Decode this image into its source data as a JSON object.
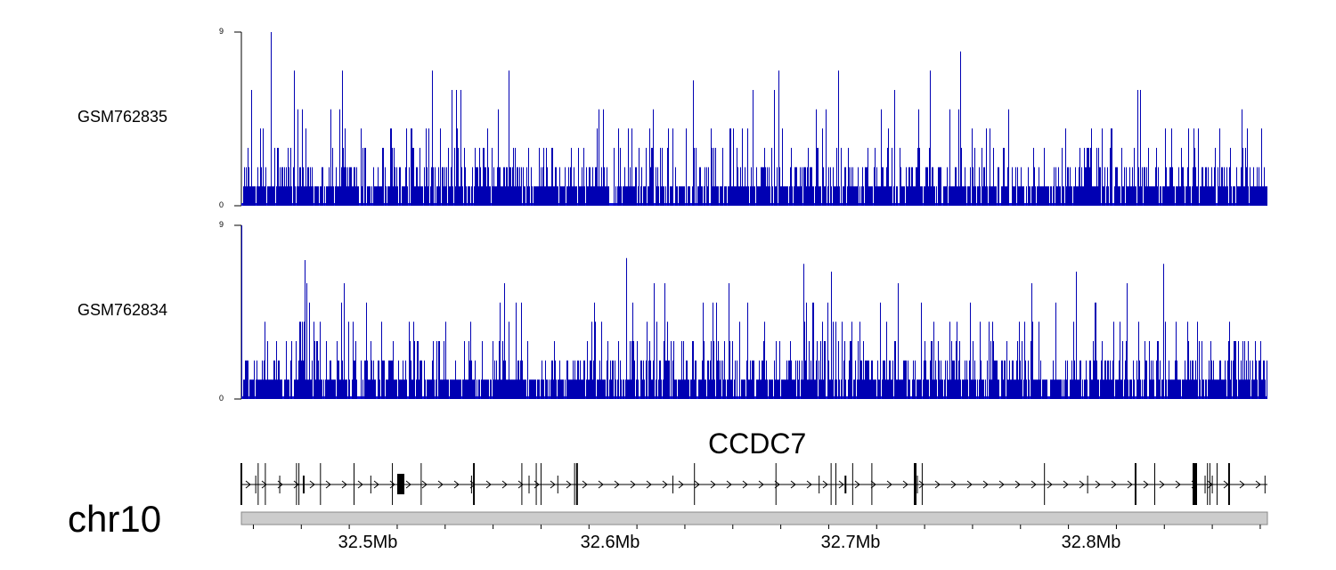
{
  "tracks": [
    {
      "name": "GSM762835",
      "ymin_label": "0",
      "ymax_label": "9",
      "ymax": 9,
      "color": "#0000b3"
    },
    {
      "name": "GSM762834",
      "ymin_label": "0",
      "ymax_label": "9",
      "ymax": 9,
      "color": "#0000b3"
    }
  ],
  "gene": {
    "name": "CCDC7"
  },
  "chromosome": "chr10",
  "axis": {
    "start_mb": 32.445,
    "end_mb": 32.873,
    "ticks": [
      {
        "mb": 32.5,
        "label": "32.5Mb"
      },
      {
        "mb": 32.6,
        "label": "32.6Mb"
      },
      {
        "mb": 32.7,
        "label": "32.7Mb"
      },
      {
        "mb": 32.8,
        "label": "32.8Mb"
      }
    ]
  },
  "exons_mb": [
    32.445,
    32.451,
    32.452,
    32.455,
    32.461,
    32.468,
    32.469,
    32.471,
    32.478,
    32.492,
    32.499,
    32.508,
    32.52,
    32.541,
    32.542,
    32.562,
    32.565,
    32.568,
    32.57,
    32.577,
    32.584,
    32.585,
    32.625,
    32.634,
    32.668,
    32.686,
    32.691,
    32.693,
    32.697,
    32.7,
    32.708,
    32.727,
    32.729,
    32.78,
    32.798,
    32.818,
    32.826,
    32.847,
    32.848,
    32.849,
    32.85,
    32.852,
    32.857,
    32.872
  ]
}
